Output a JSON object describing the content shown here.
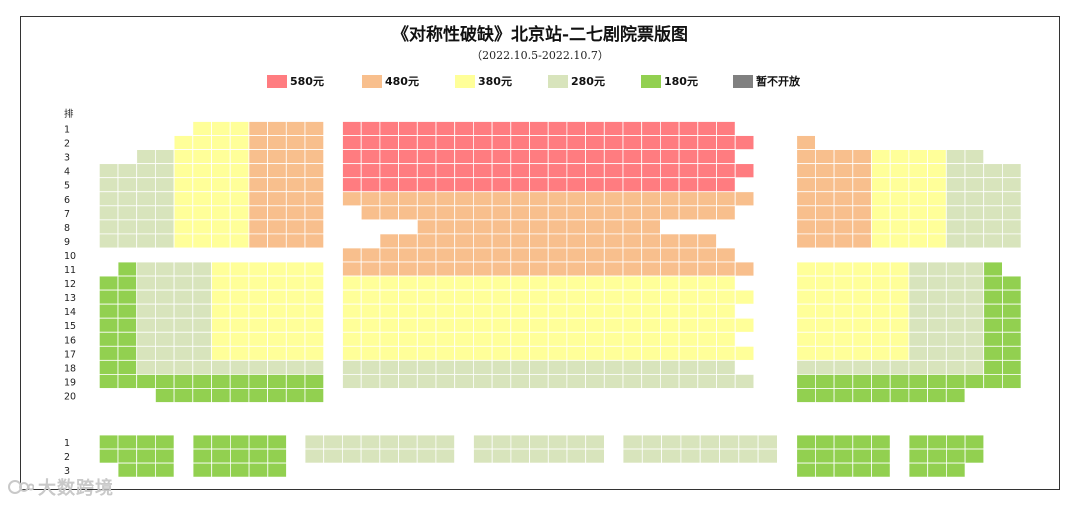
{
  "title": "《对称性破缺》北京站-二七剧院票版图",
  "subtitle": "（2022.10.5-2022.10.7）",
  "legend": [
    {
      "label": "580元",
      "color": "#ff7c80"
    },
    {
      "label": "480元",
      "color": "#f8bf8d"
    },
    {
      "label": "380元",
      "color": "#ffff99"
    },
    {
      "label": "280元",
      "color": "#d8e4bc"
    },
    {
      "label": "180元",
      "color": "#92d050"
    },
    {
      "label": "暂不开放",
      "color": "#808080"
    }
  ],
  "row_header": "排",
  "main_rows": [
    "1",
    "2",
    "3",
    "4",
    "5",
    "6",
    "7",
    "8",
    "9",
    "10",
    "11",
    "12",
    "13",
    "14",
    "15",
    "16",
    "17",
    "18",
    "19",
    "20"
  ],
  "balcony_rows": [
    "1",
    "2",
    "3"
  ],
  "watermark": "大数跨境"
}
